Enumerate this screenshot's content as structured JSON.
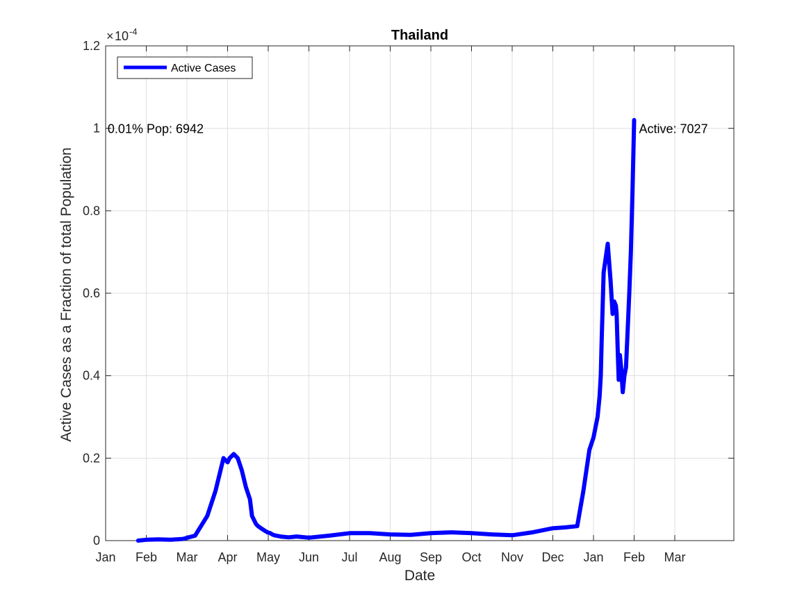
{
  "chart_data": {
    "type": "line",
    "title": "Thailand",
    "xlabel": "Date",
    "ylabel": "Active Cases as a Fraction of total Population",
    "y_exponent": {
      "base": "10",
      "power": "-4"
    },
    "ylim": [
      0,
      1.2
    ],
    "y_ticks": [
      0,
      0.2,
      0.4,
      0.6,
      0.8,
      1,
      1.2
    ],
    "y_tick_labels": [
      "0",
      "0.2",
      "0.4",
      "0.6",
      "0.8",
      "1",
      "1.2"
    ],
    "x_tick_labels": [
      "Jan",
      "Feb",
      "Mar",
      "Apr",
      "May",
      "Jun",
      "Jul",
      "Aug",
      "Sep",
      "Oct",
      "Nov",
      "Dec",
      "Jan",
      "Feb",
      "Mar"
    ],
    "grid": true,
    "legend": {
      "position": "top-left",
      "entries": [
        "Active Cases"
      ]
    },
    "series": [
      {
        "name": "Active Cases",
        "color": "#0000ff",
        "x_month_index": [
          0.8,
          1.0,
          1.3,
          1.6,
          1.9,
          2.2,
          2.5,
          2.7,
          2.8,
          2.9,
          3.0,
          3.05,
          3.1,
          3.15,
          3.25,
          3.35,
          3.45,
          3.55,
          3.6,
          3.65,
          3.7,
          3.75,
          3.82,
          3.9,
          3.98,
          4.05,
          4.1,
          4.15,
          4.2,
          4.3,
          4.5,
          4.7,
          5.0,
          5.5,
          6.0,
          6.5,
          7.0,
          7.5,
          8.0,
          8.5,
          9.0,
          9.5,
          10.0,
          10.5,
          11.0,
          11.3,
          11.6,
          11.75,
          11.9,
          12.0,
          12.1,
          12.15,
          12.18,
          12.2,
          12.25,
          12.35,
          12.42,
          12.47,
          12.51,
          12.55,
          12.57,
          12.6,
          12.62,
          12.65,
          12.68,
          12.72,
          12.76,
          12.8,
          12.85,
          12.88,
          12.92,
          12.96,
          13.0
        ],
        "values": [
          0.0,
          0.002,
          0.003,
          0.002,
          0.004,
          0.012,
          0.06,
          0.12,
          0.16,
          0.2,
          0.19,
          0.2,
          0.205,
          0.21,
          0.2,
          0.17,
          0.13,
          0.1,
          0.06,
          0.05,
          0.04,
          0.035,
          0.03,
          0.025,
          0.02,
          0.018,
          0.015,
          0.013,
          0.012,
          0.01,
          0.008,
          0.01,
          0.007,
          0.012,
          0.018,
          0.018,
          0.015,
          0.014,
          0.018,
          0.02,
          0.018,
          0.015,
          0.013,
          0.02,
          0.03,
          0.032,
          0.035,
          0.12,
          0.22,
          0.25,
          0.3,
          0.35,
          0.4,
          0.48,
          0.65,
          0.72,
          0.63,
          0.55,
          0.58,
          0.57,
          0.55,
          0.45,
          0.39,
          0.45,
          0.42,
          0.36,
          0.4,
          0.42,
          0.53,
          0.6,
          0.7,
          0.85,
          1.02
        ]
      }
    ],
    "annotations": [
      {
        "text": "0.01% Pop: 6942",
        "x_month_index": 0.05,
        "y": 1.0
      },
      {
        "text": "Active: 7027",
        "x_month_index": 13.12,
        "y": 1.0
      }
    ]
  }
}
